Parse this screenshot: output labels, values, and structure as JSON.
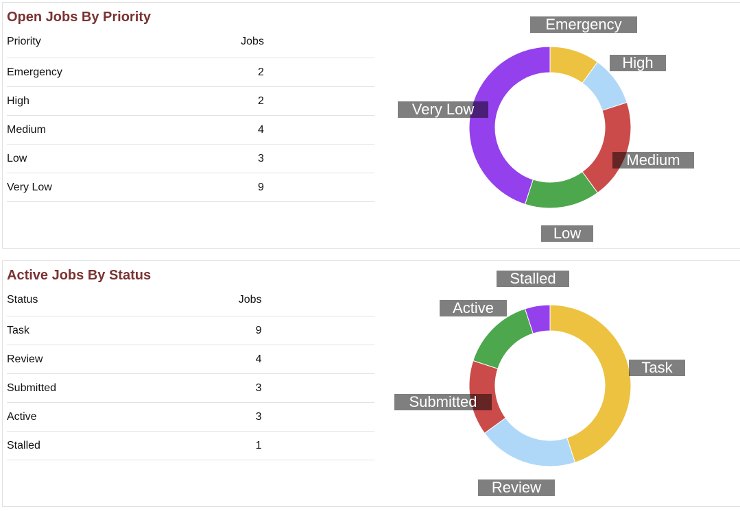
{
  "priority": {
    "title": "Open Jobs By Priority",
    "headers": [
      "Priority",
      "Jobs"
    ],
    "rows": [
      [
        "Emergency",
        "2"
      ],
      [
        "High",
        "2"
      ],
      [
        "Medium",
        "4"
      ],
      [
        "Low",
        "3"
      ],
      [
        "Very Low",
        "9"
      ]
    ]
  },
  "status": {
    "title": "Active Jobs By Status",
    "headers": [
      "Status",
      "Jobs"
    ],
    "rows": [
      [
        "Task",
        "9"
      ],
      [
        "Review",
        "4"
      ],
      [
        "Submitted",
        "3"
      ],
      [
        "Active",
        "3"
      ],
      [
        "Stalled",
        "1"
      ]
    ]
  },
  "chart_data": [
    {
      "type": "pie",
      "donut": true,
      "categories": [
        "Emergency",
        "High",
        "Medium",
        "Low",
        "Very Low"
      ],
      "values": [
        2,
        2,
        4,
        3,
        9
      ],
      "colors": [
        "#edc240",
        "#afd8f8",
        "#cb4b4b",
        "#4da74d",
        "#9440ed"
      ]
    },
    {
      "type": "pie",
      "donut": true,
      "categories": [
        "Task",
        "Review",
        "Submitted",
        "Active",
        "Stalled"
      ],
      "values": [
        9,
        4,
        3,
        3,
        1
      ],
      "colors": [
        "#edc240",
        "#afd8f8",
        "#cb4b4b",
        "#4da74d",
        "#9440ed"
      ]
    }
  ]
}
